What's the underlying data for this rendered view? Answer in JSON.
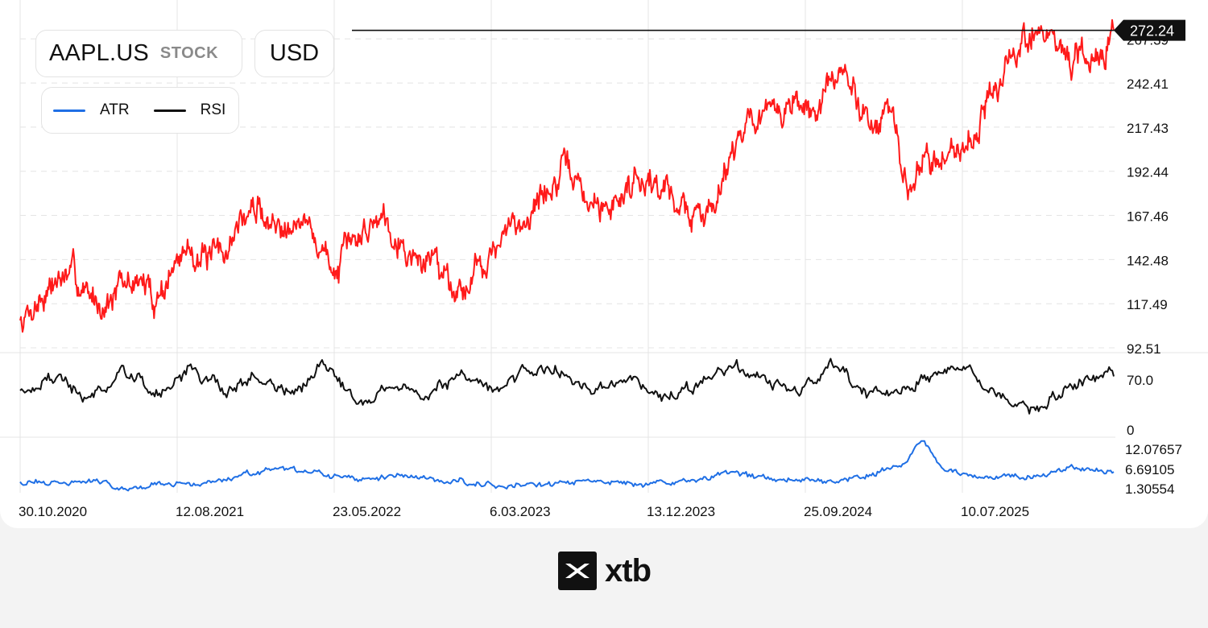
{
  "header": {
    "symbol": "AAPL.US",
    "instrument_type": "STOCK",
    "currency": "USD"
  },
  "legend": [
    {
      "name": "ATR",
      "color": "#1f6fe5"
    },
    {
      "name": "RSI",
      "color": "#111111"
    }
  ],
  "brand": {
    "name": "xtb"
  },
  "colors": {
    "price": "#ff1a1a",
    "rsi": "#111111",
    "atr": "#1f6fe5",
    "grid": "#e4e4e4",
    "price_tag": "#111111"
  },
  "chart_data": [
    {
      "type": "line",
      "panel": "price",
      "series": [
        {
          "color": "#ff1a1a",
          "x": [
            "2020-10-30",
            "2020-12-01",
            "2021-01-01",
            "2021-02-01",
            "2021-03-01",
            "2021-04-01",
            "2021-05-01",
            "2021-06-01",
            "2021-07-01",
            "2021-08-12",
            "2021-09-01",
            "2021-10-01",
            "2021-11-01",
            "2021-12-01",
            "2022-01-01",
            "2022-02-01",
            "2022-03-01",
            "2022-04-01",
            "2022-05-23",
            "2022-06-15",
            "2022-07-15",
            "2022-08-15",
            "2022-09-15",
            "2022-10-15",
            "2022-11-15",
            "2022-12-15",
            "2023-01-05",
            "2023-02-01",
            "2023-03-06",
            "2023-04-01",
            "2023-05-01",
            "2023-06-01",
            "2023-07-15",
            "2023-08-15",
            "2023-09-15",
            "2023-10-15",
            "2023-11-15",
            "2023-12-13",
            "2024-01-15",
            "2024-02-15",
            "2024-03-15",
            "2024-04-15",
            "2024-05-15",
            "2024-06-15",
            "2024-07-15",
            "2024-08-15",
            "2024-09-25",
            "2024-10-15",
            "2024-11-15",
            "2024-12-15",
            "2025-01-15",
            "2025-02-15",
            "2025-03-15",
            "2025-04-08",
            "2025-05-01",
            "2025-06-01",
            "2025-07-10",
            "2025-08-01",
            "2025-09-01",
            "2025-10-01",
            "2025-11-01",
            "2025-11-20",
            "2025-12-10",
            "2026-01-01",
            "2026-02-01",
            "2026-03-01",
            "2026-03-20"
          ],
          "values": [
            108,
            119,
            130,
            134,
            122,
            118,
            127,
            131,
            120,
            142,
            150,
            141,
            146,
            165,
            172,
            160,
            168,
            160,
            135,
            150,
            160,
            170,
            152,
            140,
            145,
            130,
            125,
            140,
            148,
            160,
            168,
            180,
            194,
            175,
            170,
            178,
            192,
            186,
            180,
            168,
            166,
            190,
            215,
            225,
            222,
            232,
            225,
            233,
            250,
            232,
            220,
            225,
            175,
            200,
            198,
            204,
            212,
            230,
            245,
            262,
            274,
            268,
            265,
            255,
            252,
            262,
            272
          ]
        }
      ],
      "y_tick_labels": [
        "92.51",
        "117.49",
        "142.48",
        "167.46",
        "192.44",
        "217.43",
        "242.41",
        "267.39"
      ],
      "ylim": [
        92.51,
        278
      ],
      "last_price_label": "272.24",
      "reference_line": 272.24,
      "grid": true
    },
    {
      "type": "line",
      "panel": "RSI",
      "series": [
        {
          "name": "RSI",
          "color": "#111111",
          "x": [
            "2020-10-30",
            "2021-01-01",
            "2021-03-01",
            "2021-05-01",
            "2021-07-01",
            "2021-09-01",
            "2021-11-01",
            "2022-01-01",
            "2022-03-01",
            "2022-05-01",
            "2022-07-01",
            "2022-09-01",
            "2022-11-01",
            "2023-01-01",
            "2023-03-01",
            "2023-05-01",
            "2023-07-01",
            "2023-09-01",
            "2023-11-01",
            "2024-01-01",
            "2024-03-01",
            "2024-05-01",
            "2024-07-01",
            "2024-09-01",
            "2024-11-01",
            "2025-01-01",
            "2025-03-01",
            "2025-05-01",
            "2025-07-01",
            "2025-09-01",
            "2025-11-01",
            "2026-01-01",
            "2026-03-20"
          ],
          "values": [
            44,
            58,
            35,
            62,
            40,
            64,
            44,
            58,
            40,
            66,
            36,
            48,
            42,
            60,
            46,
            63,
            65,
            40,
            55,
            38,
            50,
            64,
            55,
            41,
            67,
            38,
            42,
            61,
            64,
            40,
            21,
            50,
            58
          ]
        }
      ],
      "y_tick_labels": [
        "0",
        "70.0"
      ],
      "ylim": [
        0,
        80
      ]
    },
    {
      "type": "line",
      "panel": "ATR",
      "series": [
        {
          "name": "ATR",
          "color": "#1f6fe5",
          "x": [
            "2020-10-30",
            "2021-01-01",
            "2021-03-01",
            "2021-05-01",
            "2021-07-01",
            "2021-09-01",
            "2021-11-01",
            "2022-01-01",
            "2022-03-01",
            "2022-05-01",
            "2022-07-01",
            "2022-09-01",
            "2022-11-01",
            "2023-01-01",
            "2023-03-01",
            "2023-05-01",
            "2023-07-01",
            "2023-09-01",
            "2023-11-01",
            "2024-01-01",
            "2024-03-01",
            "2024-05-01",
            "2024-07-01",
            "2024-09-01",
            "2024-11-01",
            "2025-01-01",
            "2025-03-01",
            "2025-04-10",
            "2025-05-15",
            "2025-07-01",
            "2025-09-01",
            "2025-11-01",
            "2026-01-01",
            "2026-03-20"
          ],
          "values": [
            3.2,
            2.8,
            3.5,
            2.0,
            2.6,
            2.4,
            3.8,
            5.2,
            5.8,
            4.6,
            3.6,
            4.8,
            3.7,
            3.4,
            2.6,
            2.5,
            2.8,
            3.2,
            3.0,
            2.7,
            3.6,
            5.3,
            4.0,
            4.1,
            3.3,
            5.0,
            6.8,
            12.07657,
            6.4,
            3.9,
            4.6,
            4.2,
            6.6,
            5.4
          ]
        }
      ],
      "y_tick_labels": [
        "1.30554",
        "6.69105",
        "12.07657"
      ],
      "ylim": [
        0.8,
        12.5
      ]
    }
  ],
  "x_tick_labels": [
    "30.10.2020",
    "12.08.2021",
    "23.05.2022",
    "6.03.2023",
    "13.12.2023",
    "25.09.2024",
    "10.07.2025"
  ]
}
